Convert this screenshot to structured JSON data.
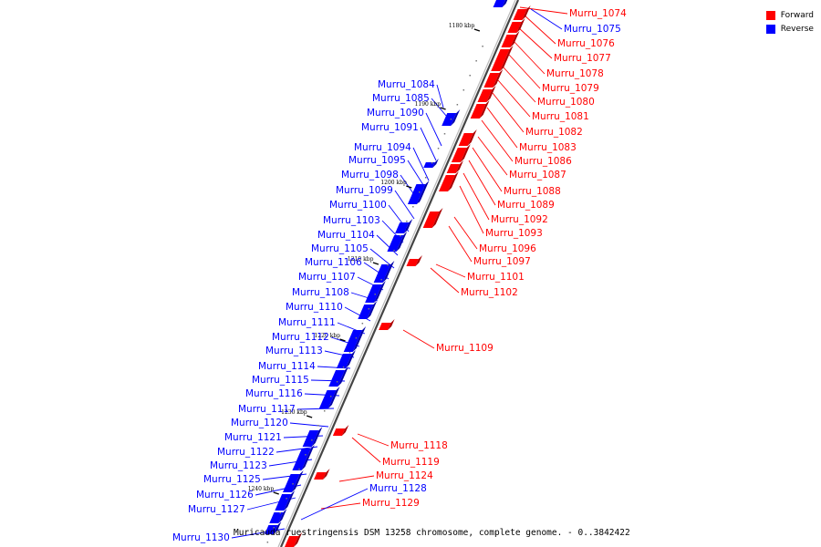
{
  "caption": "Muricauda ruestringensis DSM 13258 chromosome, complete genome. - 0..3842422",
  "legend": [
    {
      "label": "Forward",
      "color": "#ff0000"
    },
    {
      "label": "Reverse",
      "color": "#0000ff"
    }
  ],
  "colors": {
    "forward": "#ff0000",
    "reverse": "#0000ff",
    "backbone": "#888888"
  },
  "ticks": [
    "1180 kbp",
    "1190 kbp",
    "1200 kbp",
    "1210 kbp",
    "1220 kbp",
    "1230 kbp",
    "1240 kbp"
  ],
  "forward_genes": [
    "Murru_1074",
    "Murru_1076",
    "Murru_1077",
    "Murru_1078",
    "Murru_1079",
    "Murru_1080",
    "Murru_1081",
    "Murru_1082",
    "Murru_1083",
    "Murru_1086",
    "Murru_1087",
    "Murru_1088",
    "Murru_1089",
    "Murru_1092",
    "Murru_1093",
    "Murru_1096",
    "Murru_1097",
    "Murru_1101",
    "Murru_1102",
    "Murru_1109",
    "Murru_1118",
    "Murru_1119",
    "Murru_1124",
    "Murru_1129"
  ],
  "reverse_genes": [
    "Murru_1075",
    "Murru_1084",
    "Murru_1085",
    "Murru_1090",
    "Murru_1091",
    "Murru_1094",
    "Murru_1095",
    "Murru_1098",
    "Murru_1099",
    "Murru_1100",
    "Murru_1103",
    "Murru_1104",
    "Murru_1105",
    "Murru_1106",
    "Murru_1107",
    "Murru_1108",
    "Murru_1110",
    "Murru_1111",
    "Murru_1112",
    "Murru_1113",
    "Murru_1114",
    "Murru_1115",
    "Murru_1116",
    "Murru_1117",
    "Murru_1120",
    "Murru_1121",
    "Murru_1122",
    "Murru_1123",
    "Murru_1125",
    "Murru_1126",
    "Murru_1127",
    "Murru_1128",
    "Murru_1130"
  ]
}
